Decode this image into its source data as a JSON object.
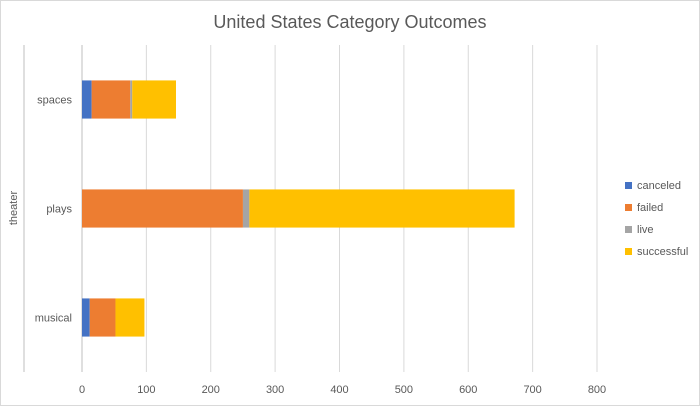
{
  "chart_data": {
    "type": "bar",
    "orientation": "horizontal",
    "stacked": true,
    "title": "United States Category Outcomes",
    "group_label": "theater",
    "categories": [
      "spaces",
      "plays",
      "musical"
    ],
    "series": [
      {
        "name": "canceled",
        "color": "#4472C4",
        "values": [
          15,
          0,
          12
        ]
      },
      {
        "name": "failed",
        "color": "#ED7D31",
        "values": [
          60,
          250,
          40
        ]
      },
      {
        "name": "live",
        "color": "#A5A5A5",
        "values": [
          3,
          10,
          0
        ]
      },
      {
        "name": "successful",
        "color": "#FFC000",
        "values": [
          68,
          412,
          45
        ]
      }
    ],
    "xlim": [
      0,
      800
    ],
    "xticks": [
      "0",
      "100",
      "200",
      "300",
      "400",
      "500",
      "600",
      "700",
      "800"
    ],
    "grid": true,
    "legend_position": "right"
  }
}
